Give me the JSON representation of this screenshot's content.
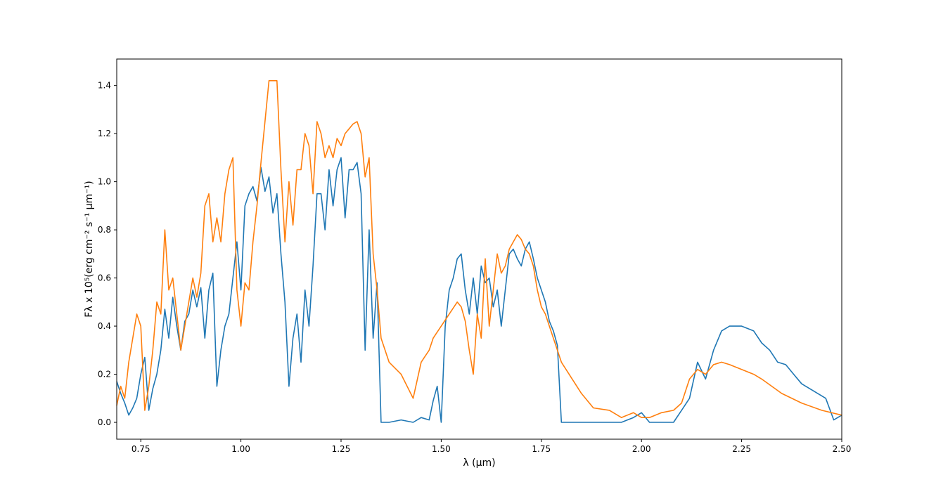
{
  "chart_data": {
    "type": "line",
    "title": "",
    "xlabel": "λ (μm)",
    "ylabel": "Fλ x 10⁵(erg cm⁻² s⁻¹ μm⁻¹)",
    "xlim": [
      0.69,
      2.5
    ],
    "ylim": [
      -0.07,
      1.51
    ],
    "x_ticks": [
      0.75,
      1.0,
      1.25,
      1.5,
      1.75,
      2.0,
      2.25,
      2.5
    ],
    "x_tick_labels": [
      "0.75",
      "1.00",
      "1.25",
      "1.50",
      "1.75",
      "2.00",
      "2.25",
      "2.50"
    ],
    "y_ticks": [
      0.0,
      0.2,
      0.4,
      0.6,
      0.8,
      1.0,
      1.2,
      1.4
    ],
    "y_tick_labels": [
      "0.0",
      "0.2",
      "0.4",
      "0.6",
      "0.8",
      "1.0",
      "1.2",
      "1.4"
    ],
    "grid": false,
    "legend": "none",
    "series": [
      {
        "color": "#1f77b4",
        "x": [
          0.69,
          0.7,
          0.71,
          0.72,
          0.73,
          0.74,
          0.75,
          0.76,
          0.77,
          0.78,
          0.79,
          0.8,
          0.81,
          0.82,
          0.83,
          0.84,
          0.85,
          0.86,
          0.87,
          0.88,
          0.89,
          0.9,
          0.91,
          0.92,
          0.93,
          0.94,
          0.95,
          0.96,
          0.97,
          0.98,
          0.99,
          1.0,
          1.01,
          1.02,
          1.03,
          1.04,
          1.05,
          1.06,
          1.07,
          1.08,
          1.09,
          1.1,
          1.11,
          1.12,
          1.13,
          1.14,
          1.15,
          1.16,
          1.17,
          1.18,
          1.19,
          1.2,
          1.21,
          1.22,
          1.23,
          1.24,
          1.25,
          1.26,
          1.27,
          1.28,
          1.29,
          1.3,
          1.31,
          1.32,
          1.33,
          1.34,
          1.35,
          1.37,
          1.4,
          1.43,
          1.45,
          1.47,
          1.48,
          1.49,
          1.5,
          1.51,
          1.52,
          1.53,
          1.54,
          1.55,
          1.56,
          1.57,
          1.58,
          1.59,
          1.6,
          1.61,
          1.62,
          1.63,
          1.64,
          1.65,
          1.66,
          1.67,
          1.68,
          1.69,
          1.7,
          1.71,
          1.72,
          1.73,
          1.74,
          1.75,
          1.76,
          1.77,
          1.78,
          1.79,
          1.8,
          1.85,
          1.9,
          1.95,
          1.98,
          2.0,
          2.02,
          2.05,
          2.08,
          2.1,
          2.12,
          2.14,
          2.16,
          2.18,
          2.2,
          2.22,
          2.25,
          2.28,
          2.3,
          2.32,
          2.34,
          2.36,
          2.38,
          2.4,
          2.42,
          2.44,
          2.46,
          2.48,
          2.5
        ],
        "y": [
          0.17,
          0.12,
          0.08,
          0.03,
          0.06,
          0.1,
          0.2,
          0.27,
          0.05,
          0.14,
          0.2,
          0.3,
          0.47,
          0.35,
          0.52,
          0.4,
          0.3,
          0.42,
          0.45,
          0.55,
          0.48,
          0.56,
          0.35,
          0.55,
          0.62,
          0.15,
          0.3,
          0.4,
          0.45,
          0.6,
          0.75,
          0.55,
          0.9,
          0.95,
          0.98,
          0.92,
          1.06,
          0.96,
          1.02,
          0.87,
          0.95,
          0.7,
          0.5,
          0.15,
          0.35,
          0.45,
          0.25,
          0.55,
          0.4,
          0.65,
          0.95,
          0.95,
          0.8,
          1.05,
          0.9,
          1.05,
          1.1,
          0.85,
          1.05,
          1.05,
          1.08,
          0.95,
          0.3,
          0.8,
          0.35,
          0.58,
          0.0,
          0.0,
          0.01,
          0.0,
          0.02,
          0.01,
          0.09,
          0.15,
          0.0,
          0.4,
          0.55,
          0.6,
          0.68,
          0.7,
          0.55,
          0.45,
          0.6,
          0.45,
          0.65,
          0.58,
          0.6,
          0.48,
          0.55,
          0.4,
          0.55,
          0.7,
          0.72,
          0.68,
          0.65,
          0.72,
          0.75,
          0.68,
          0.6,
          0.55,
          0.5,
          0.42,
          0.38,
          0.32,
          0.0,
          0.0,
          0.0,
          0.0,
          0.02,
          0.04,
          0.0,
          0.0,
          0.0,
          0.05,
          0.1,
          0.25,
          0.18,
          0.3,
          0.38,
          0.4,
          0.4,
          0.38,
          0.33,
          0.3,
          0.25,
          0.24,
          0.2,
          0.16,
          0.14,
          0.12,
          0.1,
          0.01,
          0.03
        ]
      },
      {
        "color": "#ff7f0e",
        "x": [
          0.69,
          0.7,
          0.71,
          0.72,
          0.73,
          0.74,
          0.75,
          0.76,
          0.77,
          0.78,
          0.79,
          0.8,
          0.81,
          0.82,
          0.83,
          0.84,
          0.85,
          0.86,
          0.87,
          0.88,
          0.89,
          0.9,
          0.91,
          0.92,
          0.93,
          0.94,
          0.95,
          0.96,
          0.97,
          0.98,
          0.99,
          1.0,
          1.01,
          1.02,
          1.03,
          1.04,
          1.05,
          1.06,
          1.07,
          1.08,
          1.09,
          1.1,
          1.11,
          1.12,
          1.13,
          1.14,
          1.15,
          1.16,
          1.17,
          1.18,
          1.19,
          1.2,
          1.21,
          1.22,
          1.23,
          1.24,
          1.25,
          1.26,
          1.27,
          1.28,
          1.29,
          1.3,
          1.31,
          1.32,
          1.33,
          1.34,
          1.35,
          1.37,
          1.4,
          1.43,
          1.45,
          1.47,
          1.48,
          1.5,
          1.52,
          1.54,
          1.55,
          1.56,
          1.57,
          1.58,
          1.59,
          1.6,
          1.61,
          1.62,
          1.63,
          1.64,
          1.65,
          1.66,
          1.67,
          1.68,
          1.69,
          1.7,
          1.71,
          1.72,
          1.73,
          1.74,
          1.75,
          1.76,
          1.77,
          1.78,
          1.79,
          1.8,
          1.85,
          1.88,
          1.92,
          1.95,
          1.98,
          2.0,
          2.02,
          2.05,
          2.08,
          2.1,
          2.12,
          2.14,
          2.16,
          2.18,
          2.2,
          2.22,
          2.25,
          2.28,
          2.3,
          2.35,
          2.4,
          2.45,
          2.5
        ],
        "y": [
          0.07,
          0.15,
          0.1,
          0.25,
          0.35,
          0.45,
          0.4,
          0.05,
          0.15,
          0.3,
          0.5,
          0.45,
          0.8,
          0.55,
          0.6,
          0.45,
          0.3,
          0.4,
          0.5,
          0.6,
          0.52,
          0.62,
          0.9,
          0.95,
          0.75,
          0.85,
          0.75,
          0.95,
          1.05,
          1.1,
          0.55,
          0.4,
          0.58,
          0.55,
          0.75,
          0.9,
          1.08,
          1.25,
          1.42,
          1.42,
          1.42,
          1.05,
          0.75,
          1.0,
          0.82,
          1.05,
          1.05,
          1.2,
          1.15,
          0.95,
          1.25,
          1.2,
          1.1,
          1.15,
          1.1,
          1.18,
          1.15,
          1.2,
          1.22,
          1.24,
          1.25,
          1.2,
          1.02,
          1.1,
          0.7,
          0.55,
          0.35,
          0.25,
          0.2,
          0.1,
          0.25,
          0.3,
          0.35,
          0.4,
          0.45,
          0.5,
          0.48,
          0.42,
          0.3,
          0.2,
          0.45,
          0.35,
          0.68,
          0.4,
          0.55,
          0.7,
          0.62,
          0.65,
          0.72,
          0.75,
          0.78,
          0.76,
          0.72,
          0.7,
          0.65,
          0.55,
          0.48,
          0.45,
          0.4,
          0.35,
          0.3,
          0.25,
          0.12,
          0.06,
          0.05,
          0.02,
          0.04,
          0.02,
          0.02,
          0.04,
          0.05,
          0.08,
          0.18,
          0.22,
          0.2,
          0.24,
          0.25,
          0.24,
          0.22,
          0.2,
          0.18,
          0.12,
          0.08,
          0.05,
          0.03
        ]
      }
    ]
  }
}
